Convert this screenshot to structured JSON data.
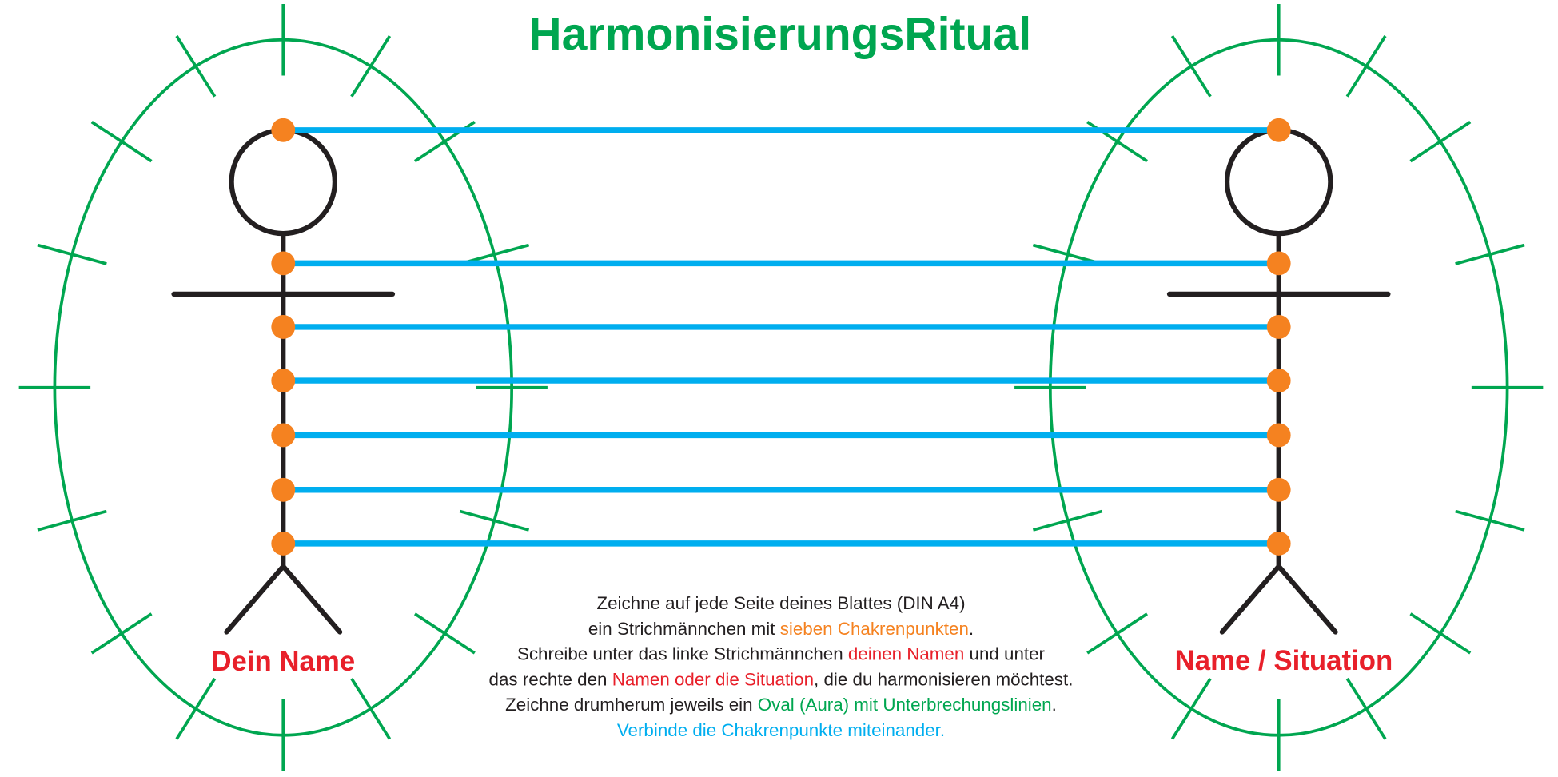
{
  "title": "HarmonisierungsRitual",
  "left_label": "Dein Name",
  "right_label": "Name / Situation",
  "instructions": [
    [
      {
        "text": "Zeichne auf jede Seite deines Blattes (DIN A4)",
        "color": "#231f20"
      }
    ],
    [
      {
        "text": "ein Strichmännchen mit ",
        "color": "#231f20"
      },
      {
        "text": "sieben Chakrenpunkten",
        "color": "#f58220"
      },
      {
        "text": ".",
        "color": "#231f20"
      }
    ],
    [
      {
        "text": "Schreibe unter das linke Strichmännchen ",
        "color": "#231f20"
      },
      {
        "text": "deinen Namen",
        "color": "#e8202a"
      },
      {
        "text": " und unter",
        "color": "#231f20"
      }
    ],
    [
      {
        "text": "das rechte den ",
        "color": "#231f20"
      },
      {
        "text": "Namen oder die Situation",
        "color": "#e8202a"
      },
      {
        "text": ", die du harmonisieren möchtest.",
        "color": "#231f20"
      }
    ],
    [
      {
        "text": "Zeichne drumherum jeweils ein ",
        "color": "#231f20"
      },
      {
        "text": "Oval (Aura) mit Unterbrechungslinien",
        "color": "#00a650"
      },
      {
        "text": ".",
        "color": "#231f20"
      }
    ],
    [
      {
        "text": "Verbinde die Chakrenpunkte miteinander.",
        "color": "#00aeef"
      }
    ]
  ]
}
